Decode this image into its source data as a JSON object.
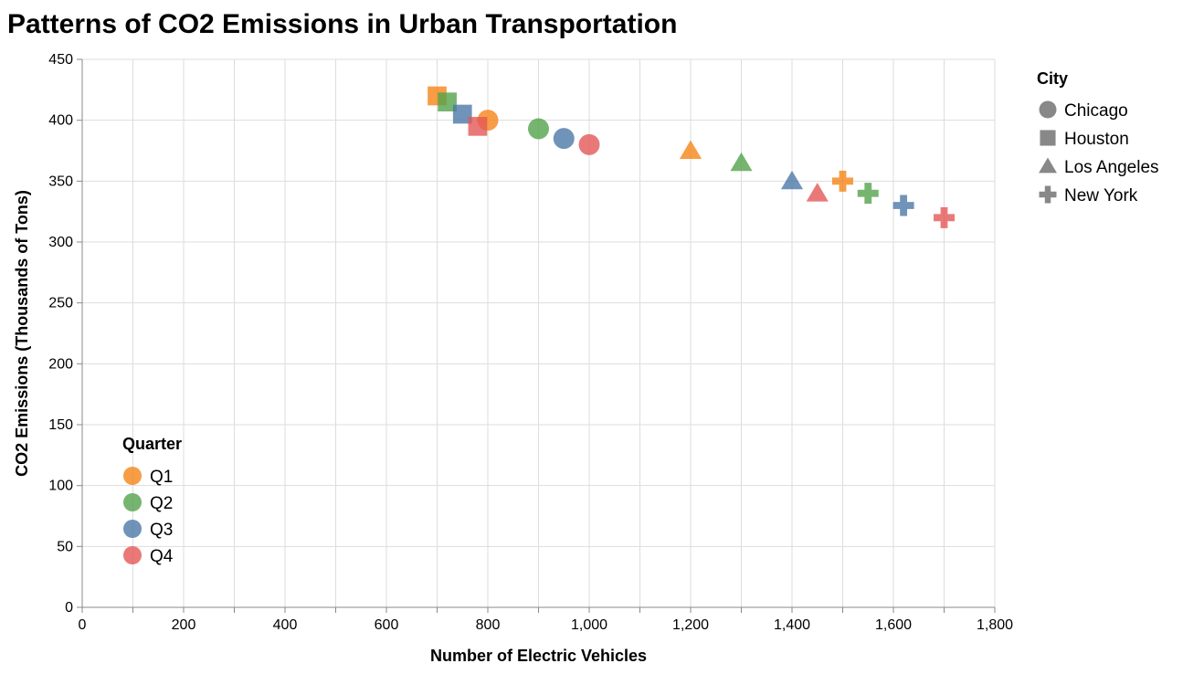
{
  "chart_data": {
    "type": "scatter",
    "title": "Patterns of CO2 Emissions in Urban Transportation",
    "xlabel": "Number of Electric Vehicles",
    "ylabel": "CO2 Emissions (Thousands of Tons)",
    "xlim": [
      0,
      1800
    ],
    "ylim": [
      0,
      450
    ],
    "x_ticks": [
      0,
      200,
      400,
      600,
      800,
      1000,
      1200,
      1400,
      1600,
      1800
    ],
    "x_tick_labels": [
      "0",
      "200",
      "400",
      "600",
      "800",
      "1,000",
      "1,200",
      "1,400",
      "1,600",
      "1,800"
    ],
    "y_ticks": [
      0,
      50,
      100,
      150,
      200,
      250,
      300,
      350,
      400,
      450
    ],
    "y_tick_labels": [
      "0",
      "50",
      "100",
      "150",
      "200",
      "250",
      "300",
      "350",
      "400",
      "450"
    ],
    "grid": true,
    "shape_legend": {
      "title": "City",
      "position": "top-right",
      "items": [
        {
          "label": "Chicago",
          "shape": "circle"
        },
        {
          "label": "Houston",
          "shape": "square"
        },
        {
          "label": "Los Angeles",
          "shape": "triangle"
        },
        {
          "label": "New York",
          "shape": "cross"
        }
      ]
    },
    "color_legend": {
      "title": "Quarter",
      "position": "bottom-left",
      "items": [
        {
          "label": "Q1",
          "color": "#f58518"
        },
        {
          "label": "Q2",
          "color": "#54a24b"
        },
        {
          "label": "Q3",
          "color": "#4c78a8"
        },
        {
          "label": "Q4",
          "color": "#e45756"
        }
      ]
    },
    "points": [
      {
        "city": "Chicago",
        "quarter": "Q1",
        "x": 800,
        "y": 400
      },
      {
        "city": "Chicago",
        "quarter": "Q2",
        "x": 900,
        "y": 393
      },
      {
        "city": "Chicago",
        "quarter": "Q3",
        "x": 950,
        "y": 385
      },
      {
        "city": "Chicago",
        "quarter": "Q4",
        "x": 1000,
        "y": 380
      },
      {
        "city": "Houston",
        "quarter": "Q1",
        "x": 700,
        "y": 420
      },
      {
        "city": "Houston",
        "quarter": "Q2",
        "x": 720,
        "y": 415
      },
      {
        "city": "Houston",
        "quarter": "Q3",
        "x": 750,
        "y": 405
      },
      {
        "city": "Houston",
        "quarter": "Q4",
        "x": 780,
        "y": 395
      },
      {
        "city": "Los Angeles",
        "quarter": "Q1",
        "x": 1200,
        "y": 375
      },
      {
        "city": "Los Angeles",
        "quarter": "Q2",
        "x": 1300,
        "y": 365
      },
      {
        "city": "Los Angeles",
        "quarter": "Q3",
        "x": 1400,
        "y": 350
      },
      {
        "city": "Los Angeles",
        "quarter": "Q4",
        "x": 1450,
        "y": 340
      },
      {
        "city": "New York",
        "quarter": "Q1",
        "x": 1500,
        "y": 350
      },
      {
        "city": "New York",
        "quarter": "Q2",
        "x": 1550,
        "y": 340
      },
      {
        "city": "New York",
        "quarter": "Q3",
        "x": 1620,
        "y": 330
      },
      {
        "city": "New York",
        "quarter": "Q4",
        "x": 1700,
        "y": 320
      }
    ]
  }
}
